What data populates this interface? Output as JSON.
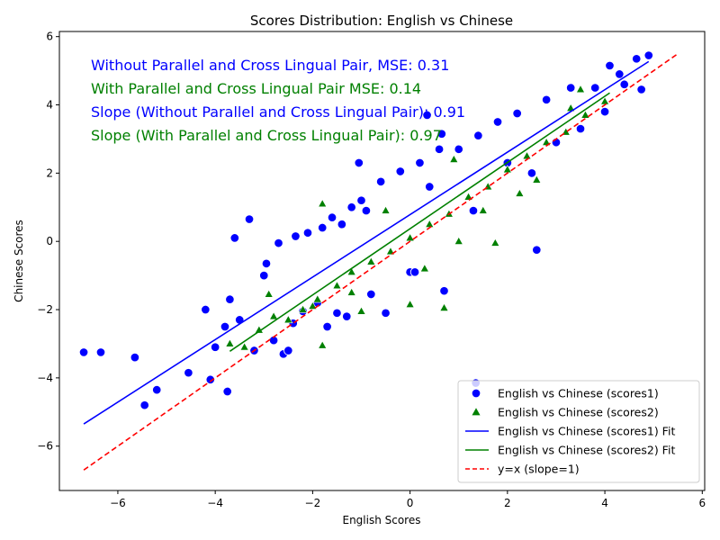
{
  "chart_data": {
    "type": "scatter",
    "title": "Scores Distribution: English vs Chinese",
    "xlabel": "English Scores",
    "ylabel": "Chinese Scores",
    "xlim": [
      -7.2,
      6.05
    ],
    "ylim": [
      -7.3,
      6.15
    ],
    "x_ticks": [
      -6,
      -4,
      -2,
      0,
      2,
      4,
      6
    ],
    "y_ticks": [
      -6,
      -4,
      -2,
      0,
      2,
      4,
      6
    ],
    "x_tick_labels": [
      "−6",
      "−4",
      "−2",
      "0",
      "2",
      "4",
      "6"
    ],
    "y_tick_labels": [
      "−6",
      "−4",
      "−2",
      "0",
      "2",
      "4",
      "6"
    ],
    "grid": false,
    "legend_position": "lower-right",
    "annotations": [
      {
        "text": "Without Parallel and Cross Lingual Pair, MSE: 0.31",
        "color": "#0000ff"
      },
      {
        "text": "With Parallel and Cross Lingual Pair MSE: 0.14",
        "color": "#008000"
      },
      {
        "text": "Slope (Without Parallel and Cross Lingual Pair): 0.91",
        "color": "#0000ff"
      },
      {
        "text": "Slope (With Parallel and Cross Lingual Pair): 0.97",
        "color": "#008000"
      }
    ],
    "series": [
      {
        "name": "English vs Chinese (scores1)",
        "kind": "scatter",
        "marker": "circle",
        "color": "#0000ff",
        "points": [
          [
            -6.7,
            -3.25
          ],
          [
            -6.35,
            -3.25
          ],
          [
            -5.65,
            -3.4
          ],
          [
            -5.45,
            -4.8
          ],
          [
            -5.2,
            -4.35
          ],
          [
            -4.55,
            -3.85
          ],
          [
            -4.1,
            -4.05
          ],
          [
            -3.75,
            -4.4
          ],
          [
            -3.6,
            0.1
          ],
          [
            -3.3,
            0.65
          ],
          [
            -2.7,
            -0.05
          ],
          [
            -2.35,
            0.15
          ],
          [
            -1.05,
            2.3
          ],
          [
            0.35,
            3.7
          ],
          [
            0.65,
            3.15
          ],
          [
            1.35,
            -4.15
          ],
          [
            2.6,
            -0.25
          ],
          [
            4.75,
            4.45
          ],
          [
            4.9,
            5.45
          ],
          [
            4.65,
            5.35
          ],
          [
            -4.2,
            -2.0
          ],
          [
            -4.0,
            -3.1
          ],
          [
            -3.8,
            -2.5
          ],
          [
            -3.7,
            -1.7
          ],
          [
            -3.5,
            -2.3
          ],
          [
            -3.2,
            -3.2
          ],
          [
            -3.0,
            -1.0
          ],
          [
            -2.95,
            -0.65
          ],
          [
            -2.8,
            -2.9
          ],
          [
            -2.6,
            -3.3
          ],
          [
            -2.5,
            -3.2
          ],
          [
            -2.4,
            -2.4
          ],
          [
            -2.2,
            -2.05
          ],
          [
            -1.9,
            -1.8
          ],
          [
            -1.7,
            -2.5
          ],
          [
            -1.5,
            -2.1
          ],
          [
            -1.3,
            -2.2
          ],
          [
            -0.8,
            -1.55
          ],
          [
            -0.5,
            -2.1
          ],
          [
            0.0,
            -0.9
          ],
          [
            0.1,
            -0.9
          ],
          [
            0.7,
            -1.45
          ],
          [
            1.3,
            0.9
          ],
          [
            2.0,
            2.3
          ],
          [
            2.5,
            2.0
          ],
          [
            3.0,
            2.9
          ],
          [
            3.5,
            3.3
          ],
          [
            4.0,
            3.8
          ],
          [
            4.3,
            4.9
          ],
          [
            4.1,
            5.15
          ],
          [
            -1.8,
            0.4
          ],
          [
            -1.6,
            0.7
          ],
          [
            -1.4,
            0.5
          ],
          [
            -1.2,
            1.0
          ],
          [
            -1.0,
            1.2
          ],
          [
            -0.6,
            1.75
          ],
          [
            -0.2,
            2.05
          ],
          [
            0.2,
            2.3
          ],
          [
            0.6,
            2.7
          ],
          [
            1.0,
            2.7
          ],
          [
            1.4,
            3.1
          ],
          [
            1.8,
            3.5
          ],
          [
            2.2,
            3.75
          ],
          [
            2.8,
            4.15
          ],
          [
            3.3,
            4.5
          ],
          [
            3.8,
            4.5
          ],
          [
            4.4,
            4.6
          ],
          [
            -2.1,
            0.25
          ],
          [
            -0.9,
            0.9
          ],
          [
            0.4,
            1.6
          ]
        ]
      },
      {
        "name": "English vs Chinese (scores2)",
        "kind": "scatter",
        "marker": "triangle",
        "color": "#008000",
        "points": [
          [
            -3.7,
            -3.0
          ],
          [
            -3.4,
            -3.1
          ],
          [
            -3.1,
            -2.6
          ],
          [
            -2.8,
            -2.2
          ],
          [
            -1.8,
            1.1
          ],
          [
            -1.8,
            -3.05
          ],
          [
            0.0,
            -1.85
          ],
          [
            0.7,
            -1.95
          ],
          [
            1.75,
            -0.05
          ],
          [
            2.25,
            1.4
          ],
          [
            -2.5,
            -2.3
          ],
          [
            -2.2,
            -2.0
          ],
          [
            -1.9,
            -1.7
          ],
          [
            -1.5,
            -1.3
          ],
          [
            -1.2,
            -0.9
          ],
          [
            -0.8,
            -0.6
          ],
          [
            -0.4,
            -0.3
          ],
          [
            0.0,
            0.1
          ],
          [
            0.4,
            0.5
          ],
          [
            0.8,
            0.8
          ],
          [
            1.2,
            1.3
          ],
          [
            1.6,
            1.6
          ],
          [
            2.0,
            2.1
          ],
          [
            2.4,
            2.5
          ],
          [
            2.8,
            2.9
          ],
          [
            3.2,
            3.2
          ],
          [
            3.6,
            3.7
          ],
          [
            4.0,
            4.1
          ],
          [
            3.5,
            4.45
          ],
          [
            3.3,
            3.9
          ],
          [
            -1.0,
            -2.05
          ],
          [
            -2.0,
            -1.9
          ],
          [
            -2.9,
            -1.55
          ],
          [
            -1.2,
            -1.5
          ],
          [
            0.3,
            -0.8
          ],
          [
            1.0,
            0.0
          ],
          [
            1.5,
            0.9
          ],
          [
            2.6,
            1.8
          ],
          [
            -0.5,
            0.9
          ],
          [
            0.9,
            2.4
          ]
        ]
      }
    ],
    "fit_lines": [
      {
        "name": "English vs Chinese (scores1) Fit",
        "color": "#0000ff",
        "dash": "solid",
        "x": [
          -6.7,
          4.9
        ],
        "y": [
          -5.35,
          5.27
        ]
      },
      {
        "name": "English vs Chinese (scores2) Fit",
        "color": "#008000",
        "dash": "solid",
        "x": [
          -3.7,
          4.1
        ],
        "y": [
          -3.22,
          4.35
        ]
      },
      {
        "name": "y=x (slope=1)",
        "color": "#ff0000",
        "dash": "dashed",
        "x": [
          -6.7,
          5.5
        ],
        "y": [
          -6.7,
          5.5
        ]
      }
    ]
  }
}
